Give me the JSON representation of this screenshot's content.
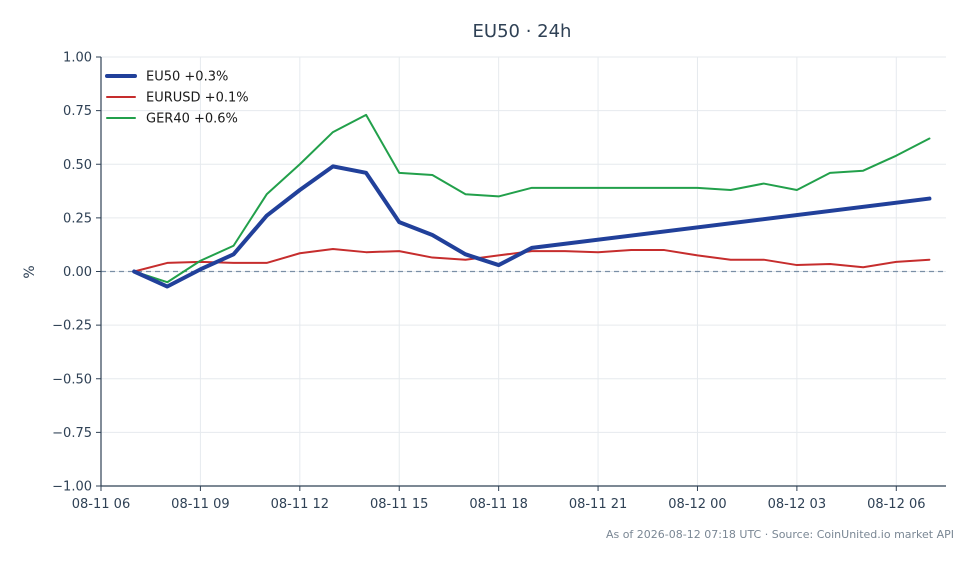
{
  "chart_data": {
    "type": "line",
    "title": "EU50 · 24h",
    "ylabel": "%",
    "xlabel": "",
    "ylim": [
      -1.0,
      1.0
    ],
    "yticks": [
      -1.0,
      -0.75,
      -0.5,
      -0.25,
      0.0,
      0.25,
      0.5,
      0.75,
      1.0
    ],
    "ytick_labels": [
      "−1.00",
      "−0.75",
      "−0.50",
      "−0.25",
      "0.00",
      "0.25",
      "0.50",
      "0.75",
      "1.00"
    ],
    "xlim": [
      0,
      25.5
    ],
    "xticks": [
      0,
      3,
      6,
      9,
      12,
      15,
      18,
      21,
      24
    ],
    "xtick_labels": [
      "08-11 06",
      "08-11 09",
      "08-11 12",
      "08-11 15",
      "08-11 18",
      "08-11 21",
      "08-12 00",
      "08-12 03",
      "08-12 06"
    ],
    "grid": true,
    "legend_position": "top-left",
    "zero_line": true,
    "series": [
      {
        "name": "EU50 +0.3%",
        "color": "#21409a",
        "width": 4,
        "x": [
          1,
          2,
          3,
          4,
          5,
          6,
          7,
          8,
          9,
          10,
          11,
          12,
          13,
          25
        ],
        "values": [
          0.0,
          -0.07,
          0.01,
          0.08,
          0.26,
          0.38,
          0.49,
          0.46,
          0.23,
          0.17,
          0.08,
          0.03,
          0.11,
          0.34
        ]
      },
      {
        "name": "EURUSD +0.1%",
        "color": "#c62d2d",
        "width": 2,
        "x": [
          1,
          2,
          3,
          4,
          5,
          6,
          7,
          8,
          9,
          10,
          11,
          12,
          13,
          14,
          15,
          16,
          17,
          18,
          19,
          20,
          21,
          22,
          23,
          24,
          25
        ],
        "values": [
          0.0,
          0.04,
          0.045,
          0.04,
          0.04,
          0.085,
          0.105,
          0.09,
          0.095,
          0.065,
          0.055,
          0.075,
          0.095,
          0.095,
          0.09,
          0.1,
          0.1,
          0.075,
          0.055,
          0.055,
          0.03,
          0.035,
          0.02,
          0.045,
          0.055
        ]
      },
      {
        "name": "GER40 +0.6%",
        "color": "#22a04b",
        "width": 2,
        "x": [
          1,
          2,
          3,
          4,
          5,
          6,
          7,
          8,
          9,
          10,
          11,
          12,
          13,
          14,
          15,
          16,
          17,
          18,
          19,
          20,
          21,
          22,
          23,
          24,
          25
        ],
        "values": [
          0.0,
          -0.05,
          0.05,
          0.12,
          0.36,
          0.5,
          0.65,
          0.73,
          0.46,
          0.45,
          0.36,
          0.35,
          0.39,
          0.39,
          0.39,
          0.39,
          0.39,
          0.39,
          0.38,
          0.41,
          0.38,
          0.46,
          0.47,
          0.54,
          0.62
        ]
      }
    ],
    "footer": "As of 2026-08-12 07:18 UTC · Source: CoinUnited.io market API"
  },
  "colors": {
    "text": "#2f4155",
    "grid": "#e6eaee",
    "axis": "#2f4155",
    "zero_line": "#7a8fa6"
  }
}
